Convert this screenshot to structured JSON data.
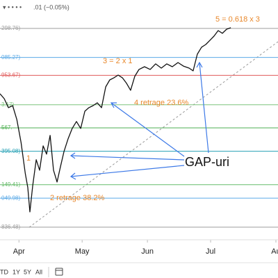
{
  "chart_data": {
    "type": "line",
    "header": ".01 (−0.05%)",
    "color": "#111111",
    "x": [
      22,
      24,
      26,
      28,
      30,
      32,
      34,
      35.2,
      36.2,
      37.5,
      39.2,
      40.8,
      42.5,
      44.1,
      45.8,
      47.4,
      49.1,
      50.7,
      52.4,
      54.3,
      56.3,
      58.3,
      60.3,
      62.3,
      64.2,
      66.2,
      68.2,
      70.2,
      72.2,
      74.1,
      76.1,
      78.1,
      80.1,
      82.1,
      84,
      86,
      88,
      90.6,
      93.3,
      95.9,
      98.6,
      101.2,
      103.8,
      106.5,
      109.1,
      111.8,
      113.7,
      115.7,
      117.7,
      119.7,
      121.7,
      123.6,
      125.6,
      127.6,
      129.6,
      131.6
    ],
    "values": [
      2818,
      2782,
      2716,
      2731,
      2629,
      2460,
      2231,
      2128,
      1949,
      2139,
      2333,
      2256,
      2435,
      2374,
      2512,
      2256,
      2169,
      2282,
      2394,
      2486,
      2563,
      2614,
      2563,
      2690,
      2716,
      2731,
      2752,
      2716,
      2869,
      2920,
      2936,
      2956,
      2936,
      2895,
      2844,
      2946,
      2997,
      3017,
      2997,
      3038,
      3007,
      3038,
      3017,
      3048,
      3022,
      3007,
      2987,
      3109,
      3161,
      3181,
      3212,
      3242,
      3283,
      3263,
      3293,
      3304
    ],
    "xlim": [
      22,
      154
    ],
    "ylim": [
      1744,
      3508
    ],
    "xticks": [
      {
        "value": 31,
        "label": "Apr"
      },
      {
        "value": 61,
        "label": "May"
      },
      {
        "value": 92,
        "label": "Jun"
      },
      {
        "value": 122,
        "label": "Jul"
      },
      {
        "value": 153,
        "label": "Au"
      }
    ],
    "levels": [
      {
        "value": 3298.76,
        "label": "298.76)",
        "color": "#9e9e9e"
      },
      {
        "value": 3085.27,
        "label": "085.27)",
        "color": "#5aa9e6"
      },
      {
        "value": 2953.67,
        "label": "953.67)",
        "color": "#e05a5a"
      },
      {
        "value": 2737.17,
        "label": "3.17)",
        "color": "#7cc47c"
      },
      {
        "value": 2567,
        "label": "567.",
        "color": "#4caf50"
      },
      {
        "value": 2395.08,
        "label": "395.08)",
        "color": "#26a1b5"
      },
      {
        "value": 2149.41,
        "label": "149.41)",
        "color": "#66bb6a"
      },
      {
        "value": 2049.98,
        "label": "049.98)",
        "color": "#5aa9e6"
      },
      {
        "value": 1836.48,
        "label": "836.48)",
        "color": "#9e9e9e"
      }
    ],
    "annotations": [
      "1",
      "2 retrage 38.2%",
      "3 = 2 x 1",
      "4 retrage 23.6%",
      "5 = 0.618 x 3",
      "GAP-uri"
    ],
    "toolbar": [
      "TD",
      "1Y",
      "5Y",
      "All"
    ]
  }
}
